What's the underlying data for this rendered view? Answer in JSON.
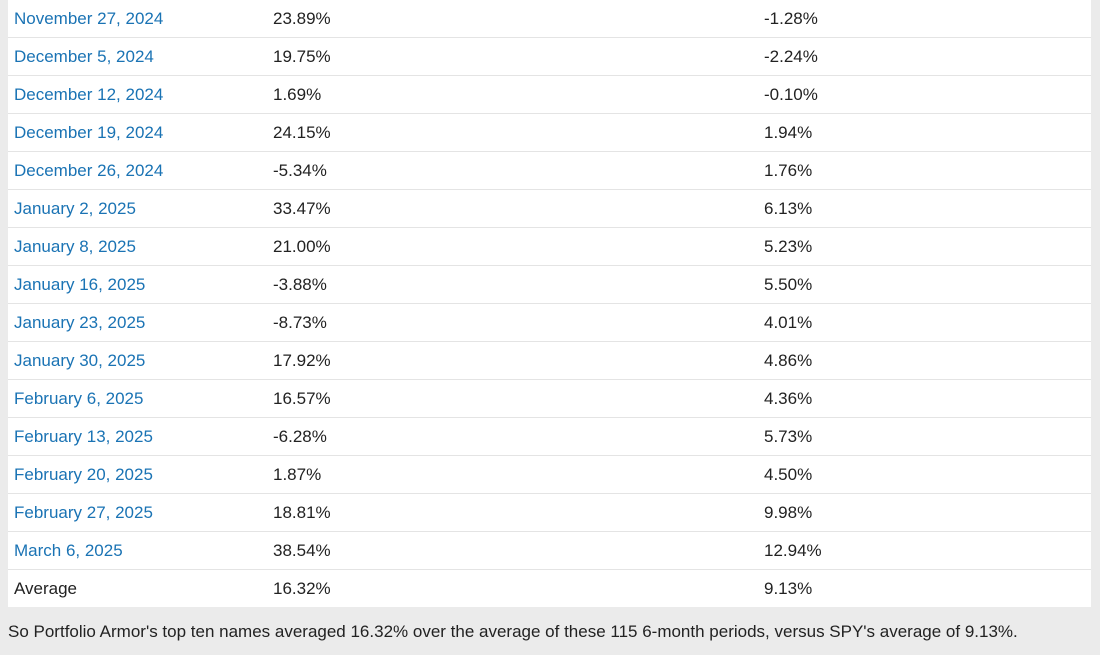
{
  "table": {
    "rows": [
      {
        "date": "November 27, 2024",
        "portfolio": "23.89%",
        "spy": "-1.28%"
      },
      {
        "date": "December 5, 2024",
        "portfolio": "19.75%",
        "spy": "-2.24%"
      },
      {
        "date": "December 12, 2024",
        "portfolio": "1.69%",
        "spy": "-0.10%"
      },
      {
        "date": "December 19, 2024",
        "portfolio": "24.15%",
        "spy": "1.94%"
      },
      {
        "date": "December 26, 2024",
        "portfolio": "-5.34%",
        "spy": "1.76%"
      },
      {
        "date": "January 2, 2025",
        "portfolio": "33.47%",
        "spy": "6.13%"
      },
      {
        "date": "January 8, 2025",
        "portfolio": "21.00%",
        "spy": "5.23%"
      },
      {
        "date": "January 16, 2025",
        "portfolio": "-3.88%",
        "spy": "5.50%"
      },
      {
        "date": "January 23, 2025",
        "portfolio": "-8.73%",
        "spy": "4.01%"
      },
      {
        "date": "January 30, 2025",
        "portfolio": "17.92%",
        "spy": "4.86%"
      },
      {
        "date": "February 6, 2025",
        "portfolio": "16.57%",
        "spy": "4.36%"
      },
      {
        "date": "February 13, 2025",
        "portfolio": "-6.28%",
        "spy": "5.73%"
      },
      {
        "date": "February 20, 2025",
        "portfolio": "1.87%",
        "spy": "4.50%"
      },
      {
        "date": "February 27, 2025",
        "portfolio": "18.81%",
        "spy": "9.98%"
      },
      {
        "date": "March 6, 2025",
        "portfolio": "38.54%",
        "spy": "12.94%"
      }
    ],
    "average": {
      "label": "Average",
      "portfolio": "16.32%",
      "spy": "9.13%"
    }
  },
  "summary_text": "So Portfolio Armor's top ten names averaged 16.32% over the average of these 115 6-month periods, versus SPY's average of 9.13%.",
  "colors": {
    "link": "#1a73b4",
    "text": "#222222",
    "page_background": "#ebebeb",
    "table_background": "#ffffff",
    "row_divider": "#e4e4e4"
  }
}
